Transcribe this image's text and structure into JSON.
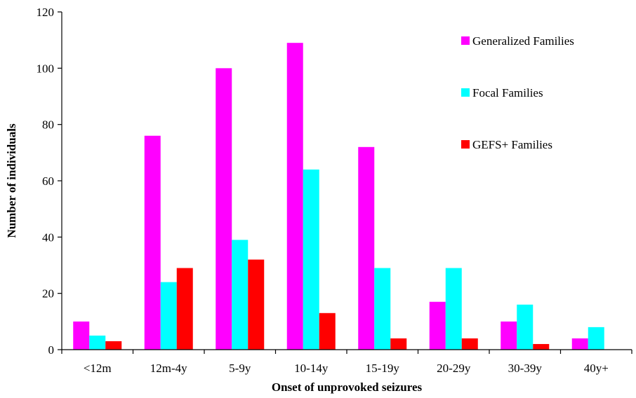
{
  "chart_data": {
    "type": "bar",
    "title": "",
    "xlabel": "Onset of unprovoked seizures",
    "ylabel": "Number of individuals",
    "ylim": [
      0,
      120
    ],
    "yticks": [
      0,
      20,
      40,
      60,
      80,
      100,
      120
    ],
    "grid": false,
    "legend_position": "top-right",
    "categories": [
      "<12m",
      "12m-4y",
      "5-9y",
      "10-14y",
      "15-19y",
      "20-29y",
      "30-39y",
      "40y+"
    ],
    "series": [
      {
        "name": "Generalized Families",
        "color": "#ff00ff",
        "values": [
          10,
          76,
          100,
          109,
          72,
          17,
          10,
          4
        ]
      },
      {
        "name": "Focal Families",
        "color": "#00ffff",
        "values": [
          5,
          24,
          39,
          64,
          29,
          29,
          16,
          8
        ]
      },
      {
        "name": "GEFS+ Families",
        "color": "#ff0000",
        "values": [
          3,
          29,
          32,
          13,
          4,
          4,
          2,
          0
        ]
      }
    ]
  }
}
